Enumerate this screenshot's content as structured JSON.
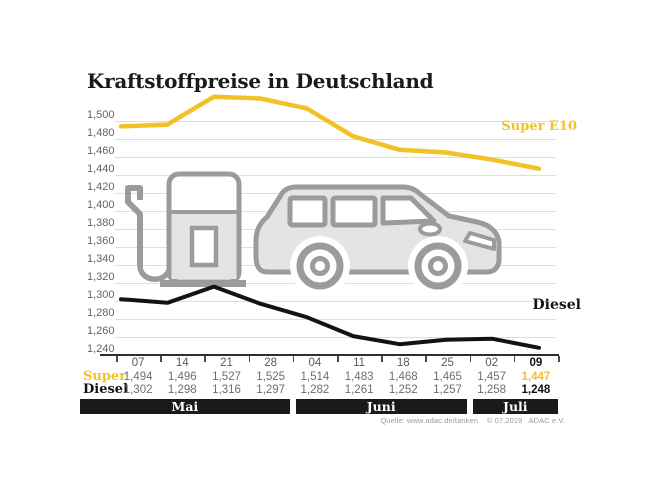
{
  "title": "Kraftstoffpreise in Deutschland",
  "source_line": "Quelle: www.adac.de/tanken    © 07.2019   ADAC e.V.",
  "colors": {
    "super_yellow": "#F2C126",
    "diesel_black": "#131313",
    "grid_gray": "#DEDEDE",
    "axis_dark": "#2E2E2E",
    "icon_gray": "#9B9B9B",
    "icon_fill": "#E4E4E4",
    "band_black": "#1A1A1A",
    "value_gray": "#6E6E6E"
  },
  "table": {
    "row_labels": {
      "super": "Super",
      "diesel": "Diesel"
    }
  },
  "icons": [
    "fuel-pump-icon",
    "car-icon"
  ],
  "chart_data": {
    "type": "line",
    "title": "Kraftstoffpreise in Deutschland",
    "x_tick_labels": [
      "07",
      "14",
      "21",
      "28",
      "04",
      "11",
      "18",
      "25",
      "02",
      "09"
    ],
    "month_groups": [
      {
        "label": "Mai",
        "cols": 4
      },
      {
        "label": "Juni",
        "cols": 4
      },
      {
        "label": "Juli",
        "cols": 2
      }
    ],
    "y_axis": {
      "ticks": [
        1500,
        1480,
        1460,
        1440,
        1420,
        1400,
        1380,
        1360,
        1340,
        1320,
        1300,
        1280,
        1260,
        1240
      ],
      "ylim": [
        1240,
        1535
      ],
      "tick_display": "comma decimal, e.g. 1,500"
    },
    "grid": true,
    "legend_position": "labels at right end of each line",
    "series": [
      {
        "name": "Super E10",
        "color": "#F2C126",
        "values": [
          1494,
          1496,
          1527,
          1525,
          1514,
          1483,
          1468,
          1465,
          1457,
          1447
        ]
      },
      {
        "name": "Diesel",
        "color": "#131313",
        "values": [
          1302,
          1298,
          1316,
          1297,
          1282,
          1261,
          1252,
          1257,
          1258,
          1248
        ]
      }
    ]
  }
}
